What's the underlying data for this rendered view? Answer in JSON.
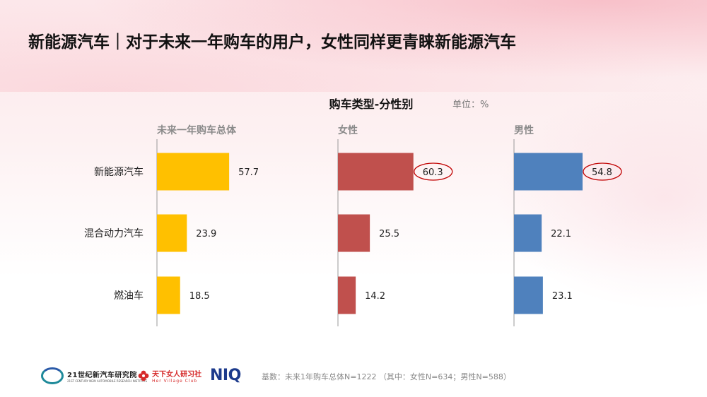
{
  "page": {
    "title": "新能源汽车｜对于未来一年购车的用户，女性同样更青睐新能源汽车",
    "unit": "单位：%",
    "base_note": "基数：未来1年购车总体N=1222 （其中：女性N=634；男性N=588）"
  },
  "logos": {
    "institute": "21世纪新汽车研究院",
    "institute_sub": "21ST CENTURY NEW AUTOMOBILE RESEARCH INSTITUTE",
    "village": "天下女人研习社",
    "village_sub": "Her Village Club",
    "niq": "NIQ"
  },
  "colors": {
    "total": "#FFC000",
    "female": "#C0504D",
    "male": "#4F81BD",
    "highlight": "#C00000",
    "axis": "#999999"
  },
  "chart_data": {
    "type": "bar",
    "orientation": "horizontal",
    "title": "购车类型-分性别",
    "categories": [
      "新能源汽车",
      "混合动力汽车",
      "燃油车"
    ],
    "xlim": [
      0,
      100
    ],
    "series": [
      {
        "name": "未来一年购车总体",
        "color": "#FFC000",
        "values": [
          57.7,
          23.9,
          18.5
        ],
        "highlight": []
      },
      {
        "name": "女性",
        "color": "#C0504D",
        "values": [
          60.3,
          25.5,
          14.2
        ],
        "highlight": [
          0
        ]
      },
      {
        "name": "男性",
        "color": "#4F81BD",
        "values": [
          54.8,
          22.1,
          23.1
        ],
        "highlight": [
          0
        ]
      }
    ]
  }
}
